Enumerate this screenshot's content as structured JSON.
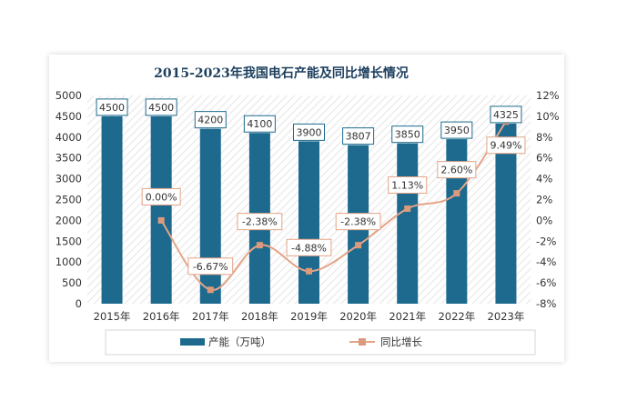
{
  "chart_data": {
    "type": "bar",
    "title": "2015-2023年我国电石产能及同比增长情况",
    "categories": [
      "2015年",
      "2016年",
      "2017年",
      "2018年",
      "2019年",
      "2020年",
      "2021年",
      "2022年",
      "2023年"
    ],
    "series": [
      {
        "name": "产能（万吨）",
        "type": "bar",
        "axis": "left",
        "values": [
          4500,
          4500,
          4200,
          4100,
          3900,
          3807,
          3850,
          3950,
          4325
        ],
        "labels": [
          "4500",
          "4500",
          "4200",
          "4100",
          "3900",
          "3807",
          "3850",
          "3950",
          "4325"
        ]
      },
      {
        "name": "同比增长",
        "type": "line",
        "axis": "right",
        "values": [
          null,
          0.0,
          -6.67,
          -2.38,
          -4.88,
          -2.38,
          1.13,
          2.6,
          9.49
        ],
        "labels": [
          "",
          "0.00%",
          "-6.67%",
          "-2.38%",
          "-4.88%",
          "-2.38%",
          "1.13%",
          "2.60%",
          "9.49%"
        ]
      }
    ],
    "y_left": {
      "min": 0,
      "max": 5000,
      "step": 500,
      "ticks": [
        "0",
        "500",
        "1000",
        "1500",
        "2000",
        "2500",
        "3000",
        "3500",
        "4000",
        "4500",
        "5000"
      ]
    },
    "y_right": {
      "min": -8,
      "max": 12,
      "step": 2,
      "ticks": [
        "-8%",
        "-6%",
        "-4%",
        "-2%",
        "0%",
        "2%",
        "4%",
        "6%",
        "8%",
        "10%",
        "12%"
      ]
    },
    "legend_position": "bottom",
    "colors": {
      "bar": "#1d6a8e",
      "line": "#e4a487",
      "marker": "#dc9a7d",
      "title": "#1c3f5e",
      "label_border_bar": "#1d6a8e",
      "label_border_line": "#e4a487"
    }
  }
}
